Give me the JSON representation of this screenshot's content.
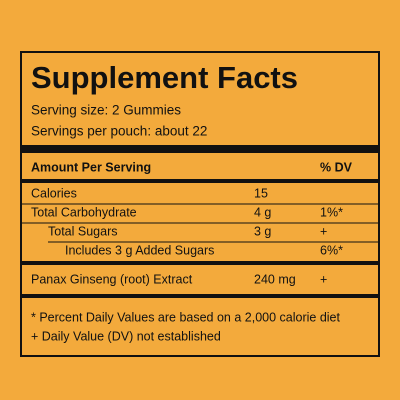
{
  "title": "Supplement Facts",
  "serving_size": "Serving size: 2 Gummies",
  "servings_per": "Servings per pouch: about 22",
  "header": {
    "amount": "Amount Per Serving",
    "dv": "% DV"
  },
  "rows": [
    {
      "name": "Calories",
      "amount": "15"
    },
    {
      "name": "Total Carbohydrate",
      "amount": "4 g",
      "dv": "1%*"
    },
    {
      "name": "Total Sugars",
      "amount": "3 g",
      "dv": "+"
    },
    {
      "name": "Includes 3 g Added Sugars",
      "dv": "6%*"
    },
    {
      "name": "Panax Ginseng (root) Extract",
      "amount": "240 mg",
      "dv": "+"
    }
  ],
  "footnotes": [
    "* Percent Daily Values are based on a 2,000 calorie diet",
    "+ Daily Value (DV) not established"
  ]
}
